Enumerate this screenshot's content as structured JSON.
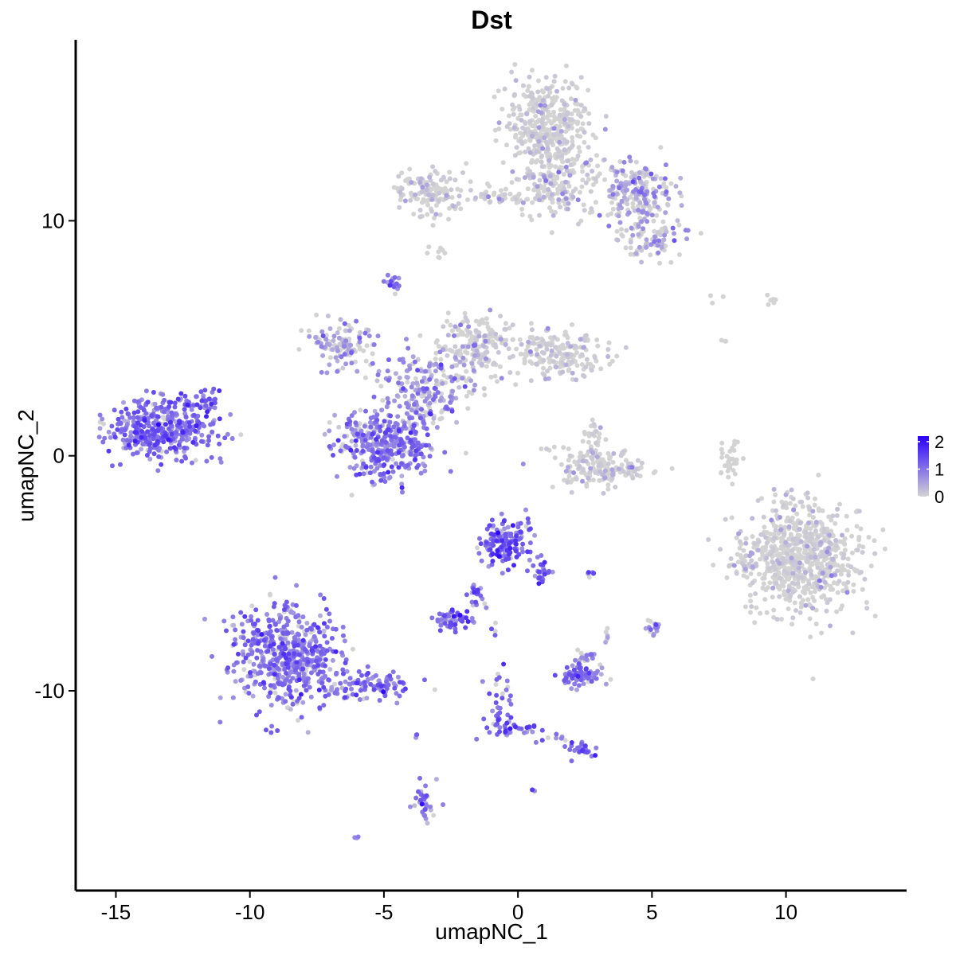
{
  "chart_data": {
    "type": "scatter",
    "title": "Dst",
    "xlabel": "umapNC_1",
    "ylabel": "umapNC_2",
    "xlim": [
      -16.5,
      14.5
    ],
    "ylim": [
      -18.5,
      17.7
    ],
    "x_ticks": [
      -15,
      -10,
      -5,
      0,
      5,
      10
    ],
    "x_tick_labels": [
      "-15",
      "-10",
      "-5",
      "0",
      "5",
      "10"
    ],
    "y_ticks": [
      -10,
      0,
      10
    ],
    "y_tick_labels": [
      "-10",
      "0",
      "10"
    ],
    "grid": false,
    "legend": {
      "placement": "right",
      "type": "colorbar",
      "range": [
        0,
        2.2
      ],
      "ticks": [
        0,
        1,
        2
      ],
      "tick_labels": [
        "0",
        "1",
        "2"
      ],
      "low_color": "#d3d3d3",
      "high_color": "#2a00ff"
    },
    "clusters": [
      {
        "cx": -13.2,
        "cy": 1.2,
        "sx": 1.2,
        "sy": 0.8,
        "n": 420,
        "expr": 1.05
      },
      {
        "cx": -11.6,
        "cy": 2.3,
        "sx": 0.3,
        "sy": 0.35,
        "n": 20,
        "expr": 1.0
      },
      {
        "cx": -8.6,
        "cy": -8.5,
        "sx": 1.2,
        "sy": 1.3,
        "n": 560,
        "expr": 0.95
      },
      {
        "cx": -5.5,
        "cy": -9.8,
        "sx": 0.9,
        "sy": 0.4,
        "n": 90,
        "expr": 1.0
      },
      {
        "cx": -5.0,
        "cy": 0.5,
        "sx": 1.0,
        "sy": 0.9,
        "n": 360,
        "expr": 0.95
      },
      {
        "cx": -3.5,
        "cy": 2.8,
        "sx": 0.9,
        "sy": 0.9,
        "n": 180,
        "expr": 0.7
      },
      {
        "cx": -6.5,
        "cy": 4.8,
        "sx": 0.8,
        "sy": 0.6,
        "n": 120,
        "expr": 0.55
      },
      {
        "cx": -4.7,
        "cy": 7.3,
        "sx": 0.15,
        "sy": 0.2,
        "n": 20,
        "expr": 1.0
      },
      {
        "cx": -1.5,
        "cy": 4.6,
        "sx": 0.9,
        "sy": 0.9,
        "n": 200,
        "expr": 0.15
      },
      {
        "cx": 1.6,
        "cy": 4.3,
        "sx": 1.0,
        "sy": 0.6,
        "n": 190,
        "expr": 0.1
      },
      {
        "cx": -3.2,
        "cy": 11.2,
        "sx": 0.8,
        "sy": 0.6,
        "n": 140,
        "expr": 0.08
      },
      {
        "cx": -0.5,
        "cy": 11.0,
        "sx": 0.8,
        "sy": 0.25,
        "n": 40,
        "expr": 0.15
      },
      {
        "cx": 1.1,
        "cy": 14.0,
        "sx": 0.9,
        "sy": 1.2,
        "n": 420,
        "expr": 0.05
      },
      {
        "cx": 1.5,
        "cy": 11.4,
        "sx": 0.9,
        "sy": 0.8,
        "n": 160,
        "expr": 0.15
      },
      {
        "cx": 4.5,
        "cy": 11.2,
        "sx": 0.8,
        "sy": 0.9,
        "n": 200,
        "expr": 0.5
      },
      {
        "cx": 5.1,
        "cy": 9.3,
        "sx": 0.7,
        "sy": 0.5,
        "n": 80,
        "expr": 0.4
      },
      {
        "cx": -3.0,
        "cy": 8.7,
        "sx": 0.15,
        "sy": 0.2,
        "n": 8,
        "expr": 0.0
      },
      {
        "cx": 3.0,
        "cy": -0.5,
        "sx": 1.0,
        "sy": 0.5,
        "n": 170,
        "expr": 0.05
      },
      {
        "cx": 2.8,
        "cy": 0.8,
        "sx": 0.3,
        "sy": 0.5,
        "n": 25,
        "expr": 0.1
      },
      {
        "cx": 7.9,
        "cy": -0.1,
        "sx": 0.25,
        "sy": 0.6,
        "n": 35,
        "expr": 0.0
      },
      {
        "cx": 10.6,
        "cy": -4.3,
        "sx": 1.3,
        "sy": 1.35,
        "n": 760,
        "expr": 0.02
      },
      {
        "cx": 8.5,
        "cy": -4.6,
        "sx": 0.35,
        "sy": 0.35,
        "n": 30,
        "expr": 0.05
      },
      {
        "cx": 9.5,
        "cy": 6.7,
        "sx": 0.35,
        "sy": 0.25,
        "n": 6,
        "expr": 0.0
      },
      {
        "cx": 7.5,
        "cy": 6.6,
        "sx": 0.2,
        "sy": 0.2,
        "n": 3,
        "expr": 0.0
      },
      {
        "cx": 7.7,
        "cy": 4.8,
        "sx": 0.1,
        "sy": 0.2,
        "n": 3,
        "expr": 0.0
      },
      {
        "cx": -0.5,
        "cy": -3.8,
        "sx": 0.5,
        "sy": 0.6,
        "n": 150,
        "expr": 1.2
      },
      {
        "cx": 1.0,
        "cy": -5.0,
        "sx": 0.2,
        "sy": 0.4,
        "n": 25,
        "expr": 1.3
      },
      {
        "cx": -1.5,
        "cy": -5.9,
        "sx": 0.2,
        "sy": 0.4,
        "n": 20,
        "expr": 1.0
      },
      {
        "cx": -2.5,
        "cy": -7.0,
        "sx": 0.4,
        "sy": 0.25,
        "n": 50,
        "expr": 1.1
      },
      {
        "cx": -0.9,
        "cy": -7.4,
        "sx": 0.1,
        "sy": 0.2,
        "n": 4,
        "expr": 0.8
      },
      {
        "cx": 2.8,
        "cy": -5.0,
        "sx": 0.15,
        "sy": 0.1,
        "n": 6,
        "expr": 1.0
      },
      {
        "cx": 5.0,
        "cy": -7.3,
        "sx": 0.15,
        "sy": 0.2,
        "n": 15,
        "expr": 0.8
      },
      {
        "cx": 3.4,
        "cy": -7.6,
        "sx": 0.1,
        "sy": 0.15,
        "n": 6,
        "expr": 0.6
      },
      {
        "cx": 2.4,
        "cy": -9.3,
        "sx": 0.5,
        "sy": 0.35,
        "n": 80,
        "expr": 0.95
      },
      {
        "cx": 2.6,
        "cy": -8.5,
        "sx": 0.2,
        "sy": 0.3,
        "n": 15,
        "expr": 0.8
      },
      {
        "cx": -0.6,
        "cy": -10.8,
        "sx": 0.3,
        "sy": 0.8,
        "n": 35,
        "expr": 1.1
      },
      {
        "cx": -0.2,
        "cy": -11.7,
        "sx": 0.6,
        "sy": 0.2,
        "n": 25,
        "expr": 1.2
      },
      {
        "cx": 2.3,
        "cy": -12.5,
        "sx": 0.35,
        "sy": 0.2,
        "n": 25,
        "expr": 1.1
      },
      {
        "cx": 1.3,
        "cy": -12.0,
        "sx": 0.3,
        "sy": 0.15,
        "n": 8,
        "expr": 0.7
      },
      {
        "cx": -0.8,
        "cy": -9.4,
        "sx": 0.1,
        "sy": 0.2,
        "n": 4,
        "expr": 0.9
      },
      {
        "cx": -3.5,
        "cy": -14.8,
        "sx": 0.25,
        "sy": 0.6,
        "n": 40,
        "expr": 0.9
      },
      {
        "cx": -3.8,
        "cy": -11.9,
        "sx": 0.05,
        "sy": 0.1,
        "n": 3,
        "expr": 1.0
      },
      {
        "cx": 0.6,
        "cy": -14.2,
        "sx": 0.05,
        "sy": 0.05,
        "n": 3,
        "expr": 1.0
      },
      {
        "cx": -6.0,
        "cy": -16.2,
        "sx": 0.05,
        "sy": 0.05,
        "n": 3,
        "expr": 1.0
      }
    ]
  }
}
